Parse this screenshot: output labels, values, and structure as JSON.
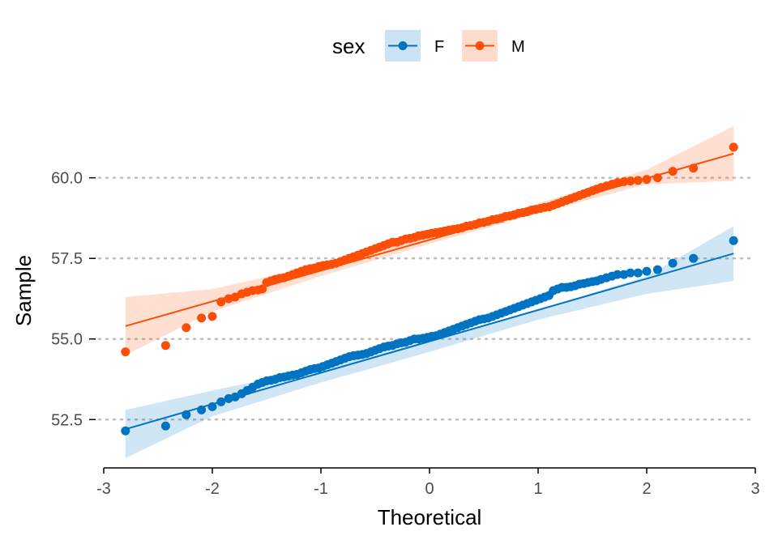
{
  "chart_data": {
    "type": "scatter",
    "subtype": "qq-plot",
    "xlabel": "Theoretical",
    "ylabel": "Sample",
    "xlim": [
      -3,
      3
    ],
    "ylim": [
      51.0,
      62.0
    ],
    "x_ticks": [
      -3,
      -2,
      -1,
      0,
      1,
      2,
      3
    ],
    "x_tick_labels": [
      "-3",
      "-2",
      "-1",
      "0",
      "1",
      "2",
      "3"
    ],
    "y_ticks": [
      52.5,
      55.0,
      57.5,
      60.0
    ],
    "y_tick_labels": [
      "52.5",
      "55.0",
      "57.5",
      "60.0"
    ],
    "grid": "horizontal-dotted",
    "legend": {
      "title": "sex",
      "placement": "top"
    },
    "series": [
      {
        "name": "F",
        "color": "#0073C2",
        "band_color": "#0073C2",
        "line": {
          "x": [
            -2.8,
            2.8
          ],
          "y": [
            52.2,
            57.65
          ]
        },
        "band_upper": [
          [
            -2.8,
            52.8
          ],
          [
            -2.0,
            53.4
          ],
          [
            -1.0,
            54.1
          ],
          [
            0.0,
            54.95
          ],
          [
            1.0,
            55.9
          ],
          [
            2.0,
            56.95
          ],
          [
            2.8,
            58.5
          ]
        ],
        "band_lower": [
          [
            -2.8,
            51.3
          ],
          [
            -2.0,
            52.6
          ],
          [
            -1.0,
            53.65
          ],
          [
            0.0,
            54.6
          ],
          [
            1.0,
            55.6
          ],
          [
            2.0,
            56.4
          ],
          [
            2.8,
            56.8
          ]
        ],
        "points": {
          "x": [
            -2.8,
            -2.43,
            -2.24,
            -2.1,
            -2.0,
            -1.92,
            -1.85,
            -1.79,
            -1.73,
            -1.68,
            -1.63,
            -1.58,
            -1.54,
            -1.5,
            -1.46,
            -1.42,
            -1.38,
            -1.34,
            -1.3,
            -1.26,
            -1.22,
            -1.18,
            -1.14,
            -1.1,
            -1.06,
            -1.02,
            -0.98,
            -0.94,
            -0.9,
            -0.86,
            -0.82,
            -0.78,
            -0.74,
            -0.7,
            -0.66,
            -0.62,
            -0.58,
            -0.54,
            -0.5,
            -0.46,
            -0.42,
            -0.38,
            -0.34,
            -0.3,
            -0.26,
            -0.22,
            -0.18,
            -0.14,
            -0.1,
            -0.06,
            -0.02,
            0.02,
            0.06,
            0.1,
            0.14,
            0.18,
            0.22,
            0.26,
            0.3,
            0.34,
            0.38,
            0.42,
            0.46,
            0.5,
            0.54,
            0.58,
            0.62,
            0.66,
            0.7,
            0.74,
            0.78,
            0.82,
            0.86,
            0.9,
            0.94,
            0.98,
            1.02,
            1.06,
            1.1,
            1.14,
            1.18,
            1.22,
            1.26,
            1.3,
            1.34,
            1.38,
            1.42,
            1.46,
            1.5,
            1.54,
            1.58,
            1.63,
            1.68,
            1.73,
            1.79,
            1.85,
            1.92,
            2.0,
            2.1,
            2.24,
            2.43,
            2.8
          ],
          "y": [
            52.15,
            52.3,
            52.65,
            52.8,
            52.9,
            53.05,
            53.15,
            53.2,
            53.3,
            53.4,
            53.5,
            53.6,
            53.65,
            53.7,
            53.72,
            53.75,
            53.8,
            53.82,
            53.85,
            53.88,
            53.9,
            53.95,
            54.0,
            54.05,
            54.08,
            54.1,
            54.15,
            54.2,
            54.25,
            54.3,
            54.35,
            54.4,
            54.45,
            54.48,
            54.5,
            54.52,
            54.55,
            54.6,
            54.65,
            54.7,
            54.75,
            54.78,
            54.8,
            54.85,
            54.88,
            54.9,
            54.95,
            55.0,
            55.0,
            55.02,
            55.05,
            55.08,
            55.1,
            55.15,
            55.2,
            55.25,
            55.3,
            55.35,
            55.4,
            55.45,
            55.5,
            55.55,
            55.6,
            55.62,
            55.65,
            55.7,
            55.75,
            55.8,
            55.85,
            55.9,
            55.95,
            56.0,
            56.05,
            56.1,
            56.15,
            56.2,
            56.25,
            56.3,
            56.35,
            56.5,
            56.55,
            56.6,
            56.6,
            56.62,
            56.65,
            56.7,
            56.72,
            56.75,
            56.78,
            56.8,
            56.85,
            56.9,
            56.95,
            57.0,
            57.0,
            57.05,
            57.05,
            57.1,
            57.15,
            57.35,
            57.5,
            58.05
          ]
        }
      },
      {
        "name": "M",
        "color": "#FC4E07",
        "band_color": "#FC4E07",
        "line": {
          "x": [
            -2.8,
            2.8
          ],
          "y": [
            55.4,
            60.75
          ]
        },
        "band_upper": [
          [
            -2.8,
            56.3
          ],
          [
            -2.0,
            56.55
          ],
          [
            -1.0,
            57.3
          ],
          [
            0.0,
            58.2
          ],
          [
            1.0,
            59.2
          ],
          [
            2.0,
            60.25
          ],
          [
            2.8,
            61.6
          ]
        ],
        "band_lower": [
          [
            -2.8,
            54.5
          ],
          [
            -2.0,
            55.85
          ],
          [
            -1.0,
            56.95
          ],
          [
            0.0,
            57.95
          ],
          [
            1.0,
            58.9
          ],
          [
            2.0,
            59.8
          ],
          [
            2.8,
            59.9
          ]
        ],
        "points": {
          "x": [
            -2.8,
            -2.43,
            -2.24,
            -2.1,
            -2.0,
            -1.92,
            -1.85,
            -1.79,
            -1.73,
            -1.68,
            -1.63,
            -1.58,
            -1.54,
            -1.5,
            -1.46,
            -1.42,
            -1.38,
            -1.34,
            -1.3,
            -1.26,
            -1.22,
            -1.18,
            -1.14,
            -1.1,
            -1.06,
            -1.02,
            -0.98,
            -0.94,
            -0.9,
            -0.86,
            -0.82,
            -0.78,
            -0.74,
            -0.7,
            -0.66,
            -0.62,
            -0.58,
            -0.54,
            -0.5,
            -0.46,
            -0.42,
            -0.38,
            -0.34,
            -0.3,
            -0.26,
            -0.22,
            -0.18,
            -0.14,
            -0.1,
            -0.06,
            -0.02,
            0.02,
            0.06,
            0.1,
            0.14,
            0.18,
            0.22,
            0.26,
            0.3,
            0.34,
            0.38,
            0.42,
            0.46,
            0.5,
            0.54,
            0.58,
            0.62,
            0.66,
            0.7,
            0.74,
            0.78,
            0.82,
            0.86,
            0.9,
            0.94,
            0.98,
            1.02,
            1.06,
            1.1,
            1.14,
            1.18,
            1.22,
            1.26,
            1.3,
            1.34,
            1.38,
            1.42,
            1.46,
            1.5,
            1.54,
            1.58,
            1.63,
            1.68,
            1.73,
            1.79,
            1.85,
            1.92,
            2.0,
            2.1,
            2.24,
            2.43,
            2.8
          ],
          "y": [
            54.6,
            54.8,
            55.35,
            55.65,
            55.7,
            56.15,
            56.25,
            56.3,
            56.4,
            56.45,
            56.5,
            56.52,
            56.55,
            56.75,
            56.8,
            56.85,
            56.88,
            56.9,
            56.95,
            57.0,
            57.05,
            57.1,
            57.15,
            57.18,
            57.2,
            57.25,
            57.28,
            57.3,
            57.32,
            57.35,
            57.4,
            57.45,
            57.5,
            57.55,
            57.6,
            57.65,
            57.7,
            57.75,
            57.8,
            57.85,
            57.9,
            57.95,
            58.0,
            58.0,
            58.05,
            58.1,
            58.12,
            58.15,
            58.2,
            58.22,
            58.25,
            58.28,
            58.3,
            58.32,
            58.35,
            58.38,
            58.4,
            58.42,
            58.45,
            58.5,
            58.52,
            58.55,
            58.6,
            58.62,
            58.65,
            58.7,
            58.72,
            58.75,
            58.8,
            58.82,
            58.85,
            58.9,
            58.92,
            58.95,
            59.0,
            59.02,
            59.05,
            59.08,
            59.1,
            59.15,
            59.2,
            59.25,
            59.3,
            59.35,
            59.4,
            59.45,
            59.5,
            59.55,
            59.6,
            59.65,
            59.7,
            59.75,
            59.8,
            59.85,
            59.88,
            59.9,
            59.92,
            59.95,
            60.0,
            60.2,
            60.3,
            60.95
          ]
        }
      }
    ]
  }
}
